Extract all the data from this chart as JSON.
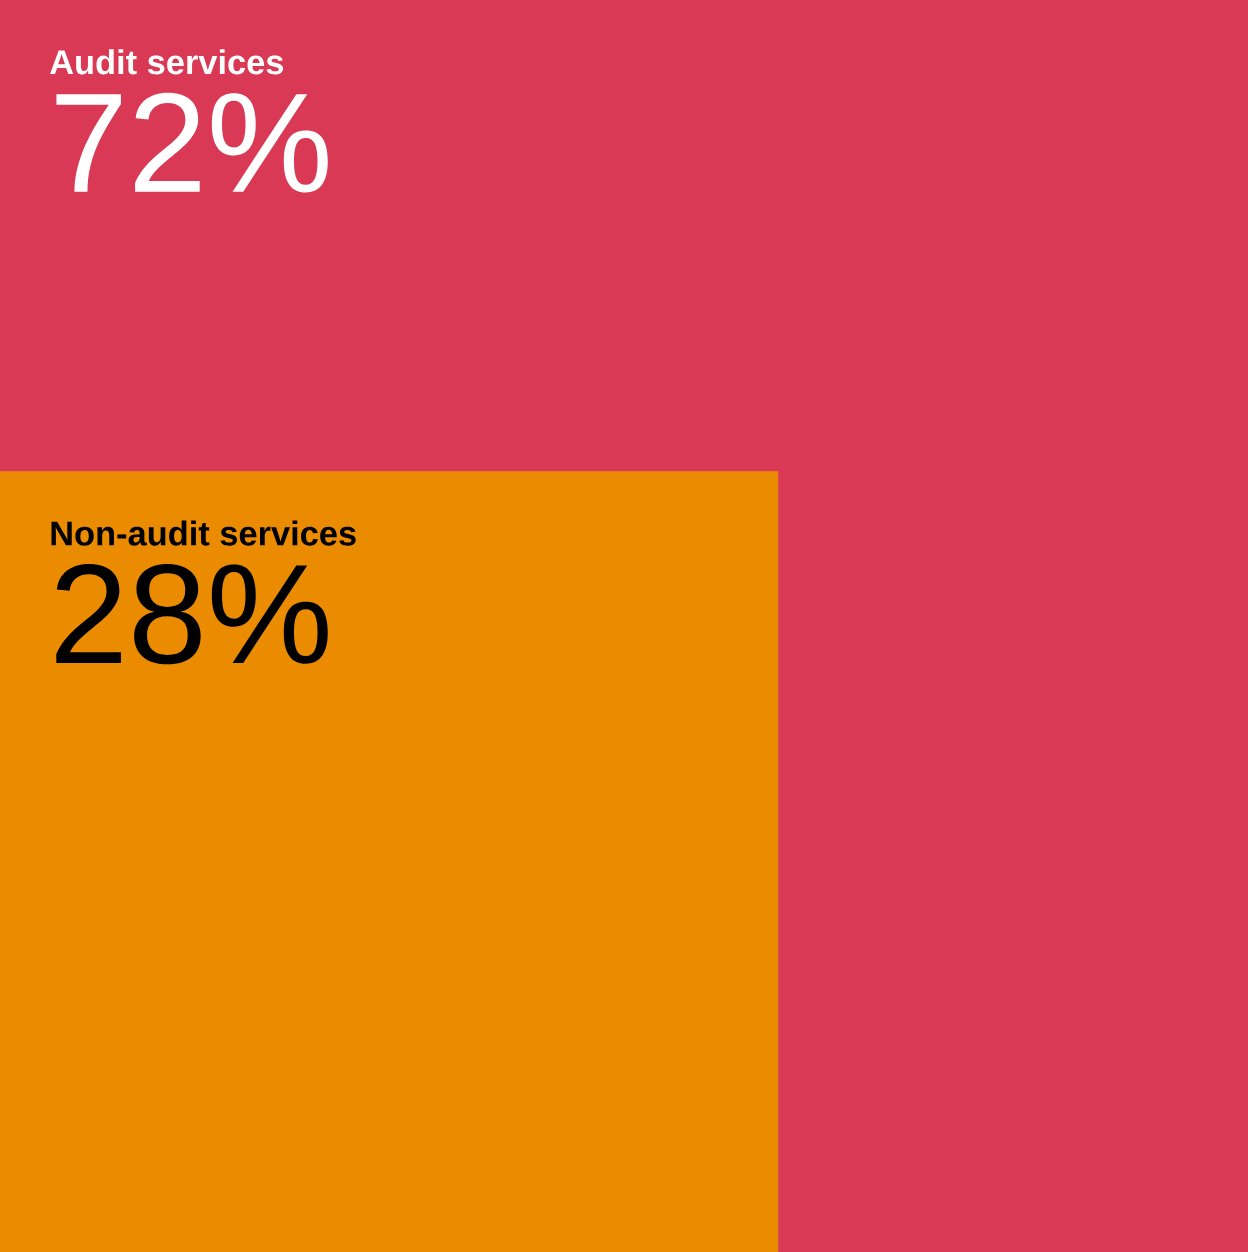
{
  "chart_data": {
    "type": "other",
    "categories": [
      "Audit services",
      "Non-audit services"
    ],
    "values": [
      72,
      28
    ],
    "colors": [
      "#d93954",
      "#eb8c00"
    ],
    "value_labels": [
      "72%",
      "28%"
    ]
  }
}
